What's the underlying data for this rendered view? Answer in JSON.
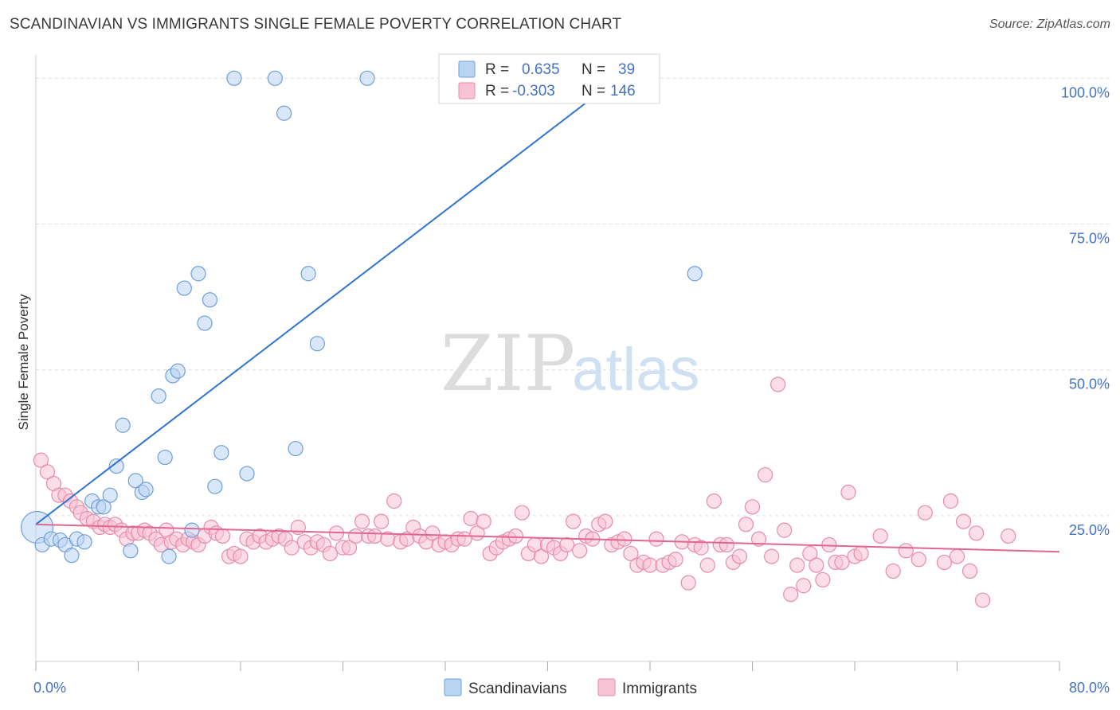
{
  "title": "SCANDINAVIAN VS IMMIGRANTS SINGLE FEMALE POVERTY CORRELATION CHART",
  "source": "Source: ZipAtlas.com",
  "watermark": {
    "zip": "ZIP",
    "atlas": "atlas"
  },
  "colors": {
    "scandinavians_fill": "#b9d3f3",
    "scandinavians_stroke": "#6e9fd8",
    "scandinavians_line": "#2f74d0",
    "immigrants_fill": "#f7c2d3",
    "immigrants_stroke": "#e88aa9",
    "immigrants_line": "#e2678f",
    "grid": "#dddddd",
    "axis_text": "#4472c4"
  },
  "legend_box": [
    {
      "r_label": "R =",
      "r_value": "0.635",
      "n_label": "N =",
      "n_value": "39"
    },
    {
      "r_label": "R =",
      "r_value": "-0.303",
      "n_label": "N =",
      "n_value": "146"
    }
  ],
  "chart_data": {
    "type": "scatter",
    "title": "SCANDINAVIAN VS IMMIGRANTS SINGLE FEMALE POVERTY CORRELATION CHART",
    "xlabel": "",
    "ylabel": "Single Female Poverty",
    "xlim": [
      0,
      80
    ],
    "ylim": [
      0,
      104
    ],
    "x_tick_labels": [
      "0.0%",
      "80.0%"
    ],
    "y_ticks": [
      25,
      50,
      75,
      100
    ],
    "y_tick_labels": [
      "25.0%",
      "50.0%",
      "75.0%",
      "100.0%"
    ],
    "grid": true,
    "legend_position": "bottom",
    "series": [
      {
        "name": "Scandinavians",
        "r": 0.635,
        "n": 39,
        "trendline": [
          [
            0,
            23.5
          ],
          [
            45.5,
            100
          ]
        ],
        "points": [
          [
            0.1,
            23
          ],
          [
            0.5,
            20
          ],
          [
            1.2,
            21
          ],
          [
            1.9,
            20.8
          ],
          [
            2.3,
            20
          ],
          [
            2.8,
            18.2
          ],
          [
            3.2,
            21
          ],
          [
            3.8,
            20.5
          ],
          [
            4.4,
            27.5
          ],
          [
            4.9,
            26.5
          ],
          [
            5.3,
            26.5
          ],
          [
            5.8,
            28.5
          ],
          [
            6.3,
            33.5
          ],
          [
            6.8,
            40.5
          ],
          [
            7.4,
            19
          ],
          [
            7.8,
            31
          ],
          [
            8.3,
            29
          ],
          [
            8.6,
            29.5
          ],
          [
            9.6,
            45.5
          ],
          [
            10.1,
            35
          ],
          [
            10.4,
            18
          ],
          [
            10.7,
            49
          ],
          [
            11.1,
            49.8
          ],
          [
            11.6,
            64
          ],
          [
            12.2,
            22.5
          ],
          [
            12.7,
            66.5
          ],
          [
            13.2,
            58
          ],
          [
            13.6,
            62
          ],
          [
            14.0,
            30
          ],
          [
            14.5,
            35.8
          ],
          [
            15.5,
            100
          ],
          [
            16.5,
            32.2
          ],
          [
            18.7,
            100
          ],
          [
            19.4,
            94
          ],
          [
            20.3,
            36.5
          ],
          [
            21.3,
            66.5
          ],
          [
            22.0,
            54.5
          ],
          [
            25.9,
            100
          ],
          [
            51.5,
            66.5
          ]
        ]
      },
      {
        "name": "Immigrants",
        "r": -0.303,
        "n": 146,
        "trendline": [
          [
            0,
            23.5
          ],
          [
            80,
            18.8
          ]
        ],
        "points": [
          [
            0.4,
            34.5
          ],
          [
            0.9,
            32.5
          ],
          [
            1.4,
            30.5
          ],
          [
            1.8,
            28.5
          ],
          [
            2.3,
            28.5
          ],
          [
            2.7,
            27.5
          ],
          [
            3.2,
            26.5
          ],
          [
            3.5,
            25.5
          ],
          [
            4.0,
            24.5
          ],
          [
            4.5,
            24.0
          ],
          [
            5.0,
            23.0
          ],
          [
            5.4,
            23.5
          ],
          [
            5.8,
            23.0
          ],
          [
            6.2,
            23.5
          ],
          [
            6.7,
            22.5
          ],
          [
            7.1,
            21.0
          ],
          [
            7.6,
            22.0
          ],
          [
            8.0,
            22.0
          ],
          [
            8.5,
            22.5
          ],
          [
            8.9,
            22.0
          ],
          [
            9.4,
            21.0
          ],
          [
            9.8,
            20.0
          ],
          [
            10.2,
            22.5
          ],
          [
            10.6,
            20.5
          ],
          [
            11.0,
            21.0
          ],
          [
            11.5,
            20.0
          ],
          [
            11.9,
            21.0
          ],
          [
            12.3,
            20.5
          ],
          [
            12.7,
            20.0
          ],
          [
            13.2,
            21.5
          ],
          [
            13.7,
            23.0
          ],
          [
            14.1,
            22.0
          ],
          [
            14.6,
            21.5
          ],
          [
            15.1,
            18.0
          ],
          [
            15.5,
            18.5
          ],
          [
            16.0,
            18.0
          ],
          [
            16.5,
            21.0
          ],
          [
            17.0,
            20.5
          ],
          [
            17.5,
            21.5
          ],
          [
            18.0,
            20.5
          ],
          [
            18.5,
            21.0
          ],
          [
            19.0,
            21.5
          ],
          [
            19.5,
            21.0
          ],
          [
            20.0,
            19.5
          ],
          [
            20.5,
            23.0
          ],
          [
            21.0,
            20.5
          ],
          [
            21.5,
            19.5
          ],
          [
            22.0,
            20.5
          ],
          [
            22.5,
            20.0
          ],
          [
            23.0,
            18.5
          ],
          [
            23.5,
            22.0
          ],
          [
            24.0,
            19.5
          ],
          [
            24.5,
            19.5
          ],
          [
            25.0,
            21.5
          ],
          [
            25.5,
            24.0
          ],
          [
            26.0,
            21.5
          ],
          [
            26.5,
            21.5
          ],
          [
            27.0,
            24.0
          ],
          [
            27.5,
            21.0
          ],
          [
            28.0,
            27.5
          ],
          [
            28.5,
            20.5
          ],
          [
            29.0,
            21.0
          ],
          [
            29.5,
            23.0
          ],
          [
            30.0,
            21.5
          ],
          [
            30.5,
            20.5
          ],
          [
            31.0,
            22.0
          ],
          [
            31.5,
            20.0
          ],
          [
            32.0,
            20.5
          ],
          [
            32.5,
            20.0
          ],
          [
            33.0,
            21.0
          ],
          [
            33.5,
            21.0
          ],
          [
            34.0,
            24.5
          ],
          [
            34.5,
            22.0
          ],
          [
            35.0,
            24.0
          ],
          [
            35.5,
            18.5
          ],
          [
            36.0,
            19.5
          ],
          [
            36.5,
            20.5
          ],
          [
            37.0,
            21.0
          ],
          [
            37.5,
            21.5
          ],
          [
            38.0,
            25.5
          ],
          [
            38.5,
            18.5
          ],
          [
            39.0,
            20.0
          ],
          [
            39.5,
            18.0
          ],
          [
            40.0,
            20.0
          ],
          [
            40.5,
            19.5
          ],
          [
            41.0,
            18.5
          ],
          [
            41.5,
            20.0
          ],
          [
            42.0,
            24.0
          ],
          [
            42.5,
            19.0
          ],
          [
            43.0,
            21.5
          ],
          [
            43.5,
            21.0
          ],
          [
            44.0,
            23.5
          ],
          [
            44.5,
            24.0
          ],
          [
            45.0,
            20.0
          ],
          [
            45.5,
            20.5
          ],
          [
            46.0,
            21.0
          ],
          [
            46.5,
            18.5
          ],
          [
            47.0,
            16.5
          ],
          [
            47.5,
            17.0
          ],
          [
            48.0,
            16.5
          ],
          [
            48.5,
            21.0
          ],
          [
            49.0,
            16.5
          ],
          [
            49.5,
            17.0
          ],
          [
            50.0,
            17.5
          ],
          [
            50.5,
            20.5
          ],
          [
            51.0,
            13.5
          ],
          [
            51.5,
            20.0
          ],
          [
            52.0,
            19.5
          ],
          [
            52.5,
            16.5
          ],
          [
            53.0,
            27.5
          ],
          [
            53.5,
            20.0
          ],
          [
            54.0,
            20.0
          ],
          [
            54.5,
            17.0
          ],
          [
            55.0,
            18.0
          ],
          [
            55.5,
            23.5
          ],
          [
            56.0,
            26.5
          ],
          [
            56.5,
            21.0
          ],
          [
            57.0,
            32.0
          ],
          [
            57.5,
            18.0
          ],
          [
            58.0,
            47.5
          ],
          [
            58.5,
            22.5
          ],
          [
            59.0,
            11.5
          ],
          [
            59.5,
            16.5
          ],
          [
            60.0,
            13.0
          ],
          [
            60.5,
            18.5
          ],
          [
            61.0,
            16.5
          ],
          [
            61.5,
            14.0
          ],
          [
            62.0,
            20.0
          ],
          [
            62.5,
            17.0
          ],
          [
            63.0,
            17.0
          ],
          [
            63.5,
            29.0
          ],
          [
            64.0,
            18.0
          ],
          [
            64.5,
            18.5
          ],
          [
            66.0,
            21.5
          ],
          [
            67.0,
            15.5
          ],
          [
            68.0,
            19.0
          ],
          [
            69.0,
            17.5
          ],
          [
            69.5,
            25.5
          ],
          [
            71.0,
            17.0
          ],
          [
            71.5,
            27.5
          ],
          [
            72.0,
            18.0
          ],
          [
            72.5,
            24.0
          ],
          [
            73.0,
            15.5
          ],
          [
            73.5,
            22.0
          ],
          [
            74.0,
            10.5
          ],
          [
            76.0,
            21.5
          ]
        ]
      }
    ]
  }
}
